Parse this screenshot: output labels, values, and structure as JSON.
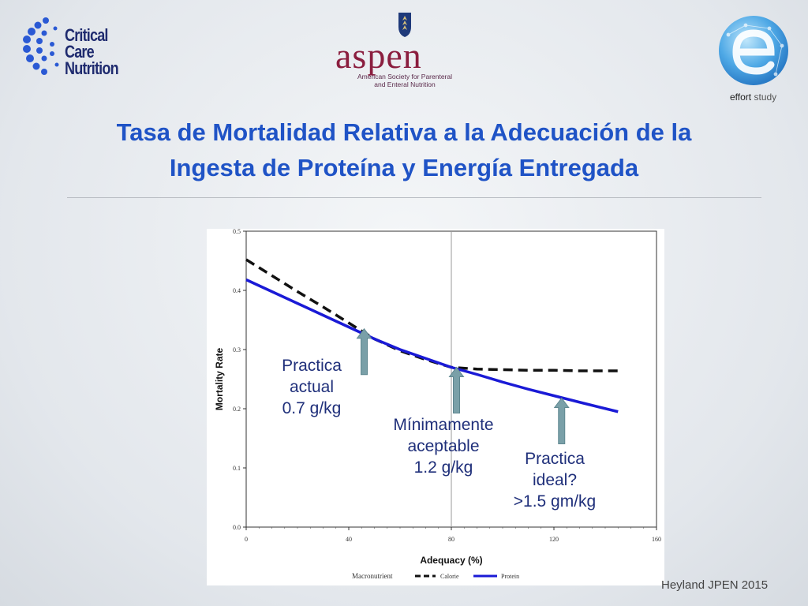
{
  "logos": {
    "ccn_line1": "Critical Care",
    "ccn_line2": "Nutrition",
    "aspen_word": "aspen",
    "aspen_sub_line1": "American Society for Parenteral",
    "aspen_sub_line2": "and Enteral Nutrition",
    "effort_word": "effort",
    "effort_study": "study"
  },
  "title_line1": "Tasa de Mortalidad Relativa a la Adecuación de la",
  "title_line2": "Ingesta de Proteína y Energía Entregada",
  "citation": "Heyland JPEN 2015",
  "colors": {
    "title": "#1f53c6",
    "protein_line": "#1a1ad6",
    "calorie_line": "#111111",
    "arrow": "#7aa0a8",
    "annotation": "#1f2f7a"
  },
  "chart_data": {
    "type": "line",
    "xlabel": "Adequacy (%)",
    "ylabel": "Mortality Rate",
    "xlim": [
      0,
      160
    ],
    "ylim": [
      0.0,
      0.5
    ],
    "x_ticks": [
      "0",
      "40",
      "80",
      "120",
      "160"
    ],
    "y_ticks": [
      "0.0",
      "0.1",
      "0.2",
      "0.3",
      "0.4",
      "0.5"
    ],
    "reference_line_x": 80,
    "legend": {
      "title": "Macronutrient",
      "position": "bottom"
    },
    "series": [
      {
        "name": "Calorie",
        "style": "dashed",
        "x": [
          0,
          10,
          20,
          30,
          40,
          50,
          60,
          70,
          80,
          90,
          100,
          110,
          120,
          130,
          145
        ],
        "y": [
          0.452,
          0.425,
          0.398,
          0.372,
          0.345,
          0.318,
          0.298,
          0.283,
          0.27,
          0.267,
          0.266,
          0.265,
          0.265,
          0.264,
          0.264
        ]
      },
      {
        "name": "Protein",
        "style": "solid",
        "x": [
          0,
          10,
          20,
          30,
          40,
          50,
          60,
          70,
          80,
          90,
          100,
          110,
          120,
          130,
          145
        ],
        "y": [
          0.418,
          0.398,
          0.378,
          0.358,
          0.338,
          0.318,
          0.3,
          0.285,
          0.27,
          0.258,
          0.245,
          0.233,
          0.222,
          0.211,
          0.195
        ]
      }
    ],
    "annotations": [
      {
        "lines": [
          "Practica",
          "actual",
          "0.7 g/kg"
        ],
        "arrow_x": 46,
        "arrow_y": 0.335
      },
      {
        "lines": [
          "Mínimamente",
          "aceptable",
          "1.2 g/kg"
        ],
        "arrow_x": 82,
        "arrow_y": 0.27
      },
      {
        "lines": [
          "Practica",
          "ideal?",
          ">1.5 gm/kg"
        ],
        "arrow_x": 123,
        "arrow_y": 0.218
      }
    ]
  }
}
